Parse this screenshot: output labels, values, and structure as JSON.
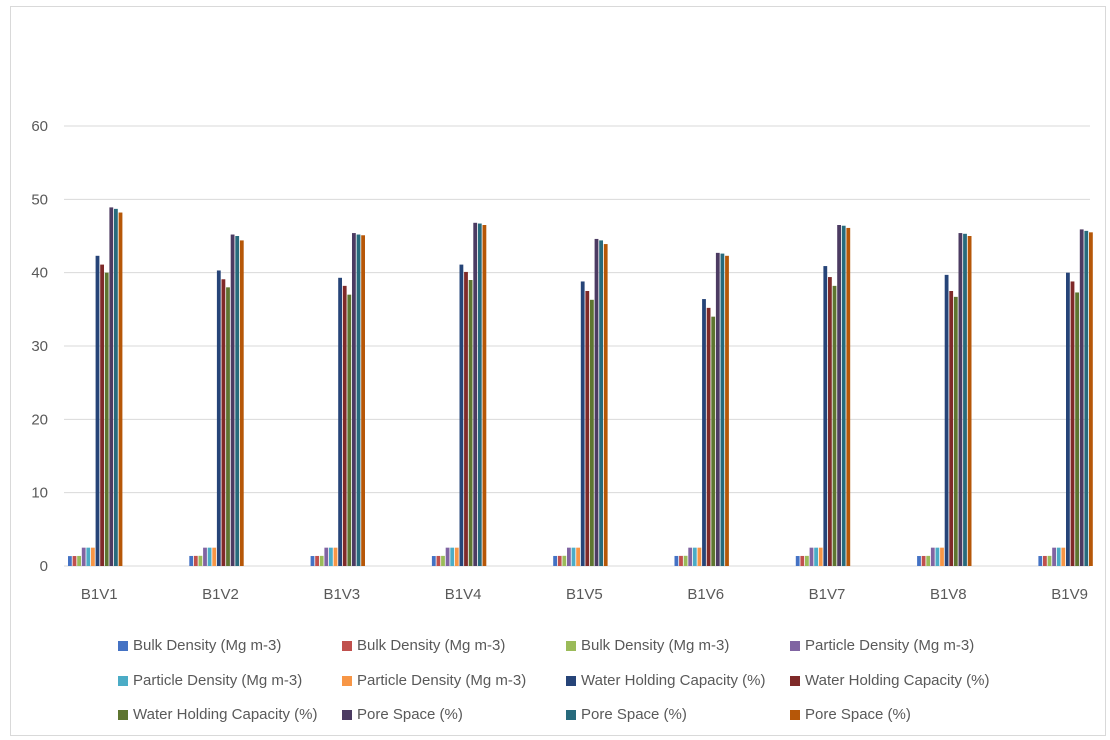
{
  "chart_data": {
    "type": "bar",
    "title": "",
    "xlabel": "",
    "ylabel": "",
    "ylim": [
      0,
      60
    ],
    "yticks": [
      "0",
      "10",
      "20",
      "30",
      "40",
      "50",
      "60"
    ],
    "grid": true,
    "legend_position": "bottom",
    "categories": [
      "B1V1",
      "B1V2",
      "B1V3",
      "B1V4",
      "B1V5",
      "B1V6",
      "B1V7",
      "B1V8",
      "B1V9"
    ],
    "series": [
      {
        "name": "Bulk Density (Mg m-3)",
        "color": "#4472c4",
        "values": [
          1.35,
          1.37,
          1.36,
          1.36,
          1.37,
          1.37,
          1.36,
          1.36,
          1.36
        ]
      },
      {
        "name": "Bulk Density (Mg m-3)",
        "color": "#c0504d",
        "values": [
          1.36,
          1.38,
          1.37,
          1.37,
          1.38,
          1.38,
          1.37,
          1.37,
          1.37
        ]
      },
      {
        "name": "Bulk Density (Mg m-3)",
        "color": "#9bbb59",
        "values": [
          1.37,
          1.39,
          1.38,
          1.38,
          1.39,
          1.39,
          1.38,
          1.38,
          1.38
        ]
      },
      {
        "name": "Particle Density (Mg m-3)",
        "color": "#8064a2",
        "values": [
          2.5,
          2.5,
          2.5,
          2.5,
          2.5,
          2.5,
          2.5,
          2.5,
          2.5
        ]
      },
      {
        "name": "Particle Density (Mg m-3)",
        "color": "#4bacc6",
        "values": [
          2.5,
          2.5,
          2.5,
          2.5,
          2.5,
          2.5,
          2.5,
          2.5,
          2.5
        ]
      },
      {
        "name": "Particle Density (Mg m-3)",
        "color": "#f79646",
        "values": [
          2.5,
          2.5,
          2.5,
          2.5,
          2.5,
          2.5,
          2.5,
          2.5,
          2.5
        ]
      },
      {
        "name": "Water Holding Capacity (%)",
        "color": "#264478",
        "values": [
          42.3,
          40.3,
          39.3,
          41.1,
          38.8,
          36.4,
          40.9,
          39.7,
          40.0
        ]
      },
      {
        "name": "Water Holding Capacity (%)",
        "color": "#7f2a29",
        "values": [
          41.1,
          39.1,
          38.2,
          40.1,
          37.5,
          35.2,
          39.4,
          37.5,
          38.8
        ]
      },
      {
        "name": "Water Holding Capacity (%)",
        "color": "#5e7530",
        "values": [
          40.0,
          38.0,
          37.0,
          39.0,
          36.3,
          34.0,
          38.2,
          36.7,
          37.3
        ]
      },
      {
        "name": "Pore Space (%)",
        "color": "#4c3b62",
        "values": [
          48.9,
          45.2,
          45.4,
          46.8,
          44.6,
          42.7,
          46.5,
          45.4,
          45.9
        ]
      },
      {
        "name": "Pore Space (%)",
        "color": "#276a7c",
        "values": [
          48.7,
          45.0,
          45.2,
          46.7,
          44.4,
          42.6,
          46.4,
          45.3,
          45.7
        ]
      },
      {
        "name": "Pore Space (%)",
        "color": "#b65708",
        "values": [
          48.2,
          44.4,
          45.1,
          46.5,
          43.9,
          42.3,
          46.1,
          45.0,
          45.5
        ]
      }
    ]
  }
}
